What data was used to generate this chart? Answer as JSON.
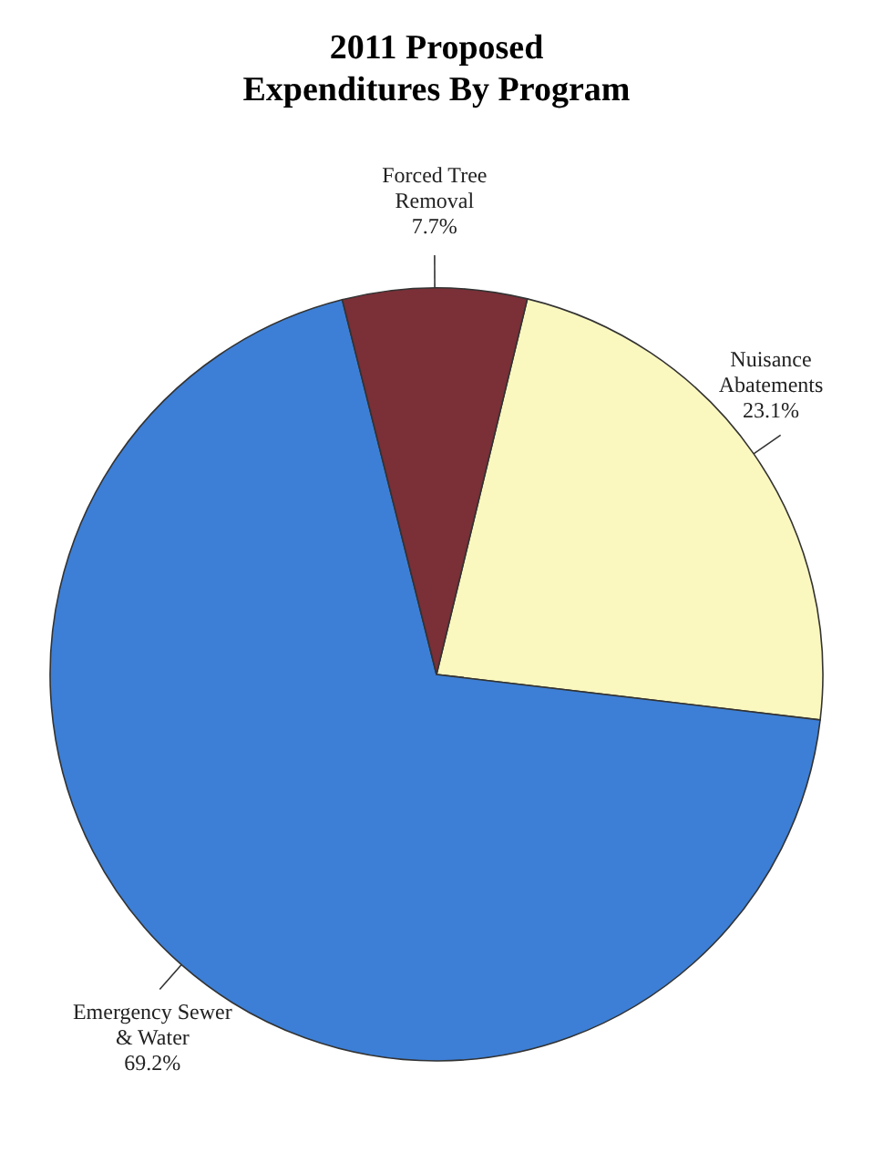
{
  "chart_data": {
    "type": "pie",
    "title": "2011 Proposed Expenditures By Program",
    "categories": [
      "Nuisance Abatements",
      "Emergency Sewer & Water",
      "Forced Tree Removal"
    ],
    "values": [
      23.1,
      69.2,
      7.7
    ],
    "colors": [
      "#fbf8bf",
      "#3d7fd6",
      "#7b2f37"
    ],
    "value_labels": [
      "23.1%",
      "69.2%",
      "7.7%"
    ]
  }
}
